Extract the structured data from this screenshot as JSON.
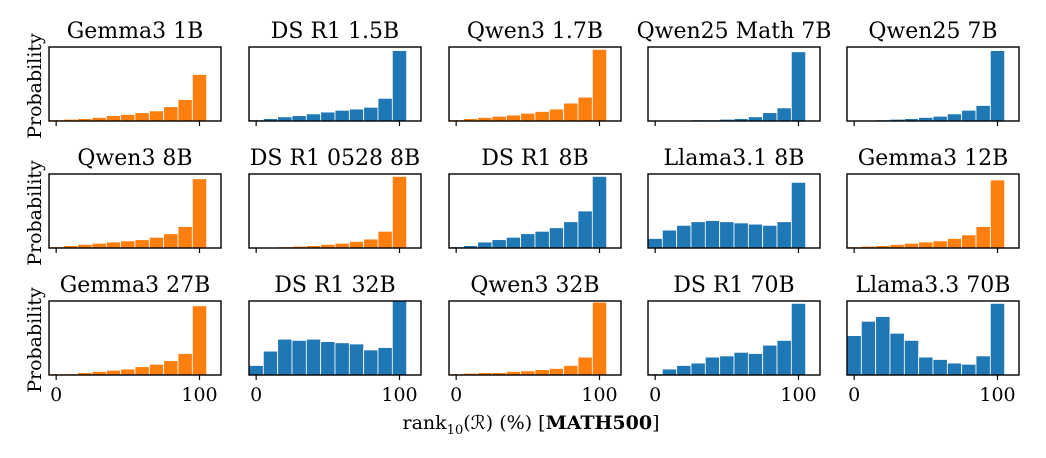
{
  "chart_data": {
    "type": "bar",
    "xlabel": {
      "prefix": "rank",
      "sub": "10",
      "mid": "(ℛ) (%) [",
      "bold": "MATH500",
      "suffix": "]"
    },
    "ylabel": "Probability",
    "xticks": [
      0,
      100
    ],
    "colors": {
      "orange": "#ff7f0e",
      "blue": "#1f77b4"
    },
    "panels": [
      {
        "title": "Gemma3 1B",
        "color": "orange",
        "values": [
          0.01,
          0.015,
          0.02,
          0.03,
          0.045,
          0.055,
          0.07,
          0.085,
          0.12,
          0.18,
          0.39
        ]
      },
      {
        "title": "DS R1 1.5B",
        "color": "blue",
        "values": [
          0.01,
          0.02,
          0.035,
          0.045,
          0.06,
          0.075,
          0.09,
          0.1,
          0.115,
          0.19,
          0.59
        ]
      },
      {
        "title": "Qwen3 1.7B",
        "color": "orange",
        "values": [
          0.01,
          0.02,
          0.03,
          0.04,
          0.05,
          0.065,
          0.08,
          0.1,
          0.15,
          0.2,
          0.6
        ]
      },
      {
        "title": "Qwen25 Math 7B",
        "color": "blue",
        "values": [
          0.0,
          0.005,
          0.005,
          0.01,
          0.01,
          0.015,
          0.02,
          0.035,
          0.07,
          0.11,
          0.58
        ]
      },
      {
        "title": "Qwen25 7B",
        "color": "blue",
        "values": [
          0.0,
          0.005,
          0.01,
          0.015,
          0.02,
          0.03,
          0.04,
          0.06,
          0.09,
          0.13,
          0.59
        ]
      },
      {
        "title": "Qwen3 8B",
        "color": "orange",
        "values": [
          0.01,
          0.02,
          0.03,
          0.04,
          0.05,
          0.06,
          0.07,
          0.09,
          0.12,
          0.18,
          0.58
        ]
      },
      {
        "title": "DS R1 0528 8B",
        "color": "orange",
        "values": [
          0.0,
          0.005,
          0.01,
          0.015,
          0.02,
          0.03,
          0.04,
          0.055,
          0.075,
          0.14,
          0.6
        ]
      },
      {
        "title": "DS R1 8B",
        "color": "blue",
        "values": [
          0.01,
          0.02,
          0.05,
          0.07,
          0.09,
          0.12,
          0.14,
          0.17,
          0.22,
          0.31,
          0.6
        ]
      },
      {
        "title": "Llama3.1 8B",
        "color": "blue",
        "values": [
          0.08,
          0.15,
          0.19,
          0.22,
          0.23,
          0.22,
          0.21,
          0.2,
          0.19,
          0.22,
          0.55
        ]
      },
      {
        "title": "Gemma3 12B",
        "color": "orange",
        "values": [
          0.01,
          0.015,
          0.02,
          0.03,
          0.04,
          0.05,
          0.06,
          0.08,
          0.11,
          0.18,
          0.57
        ]
      },
      {
        "title": "Gemma3 27B",
        "color": "orange",
        "values": [
          0.01,
          0.01,
          0.02,
          0.03,
          0.04,
          0.05,
          0.07,
          0.09,
          0.12,
          0.18,
          0.58
        ]
      },
      {
        "title": "DS R1 32B",
        "color": "blue",
        "values": [
          0.08,
          0.2,
          0.3,
          0.29,
          0.3,
          0.28,
          0.27,
          0.26,
          0.21,
          0.23,
          0.64
        ]
      },
      {
        "title": "Qwen3 32B",
        "color": "orange",
        "values": [
          0.01,
          0.015,
          0.02,
          0.02,
          0.03,
          0.035,
          0.045,
          0.055,
          0.08,
          0.15,
          0.61
        ]
      },
      {
        "title": "DS R1 70B",
        "color": "blue",
        "values": [
          0.01,
          0.05,
          0.08,
          0.1,
          0.15,
          0.16,
          0.19,
          0.18,
          0.25,
          0.29,
          0.6
        ]
      },
      {
        "title": "Llama3.3 70B",
        "color": "blue",
        "values": [
          0.33,
          0.45,
          0.49,
          0.35,
          0.29,
          0.15,
          0.13,
          0.1,
          0.09,
          0.16,
          0.6
        ]
      }
    ]
  }
}
